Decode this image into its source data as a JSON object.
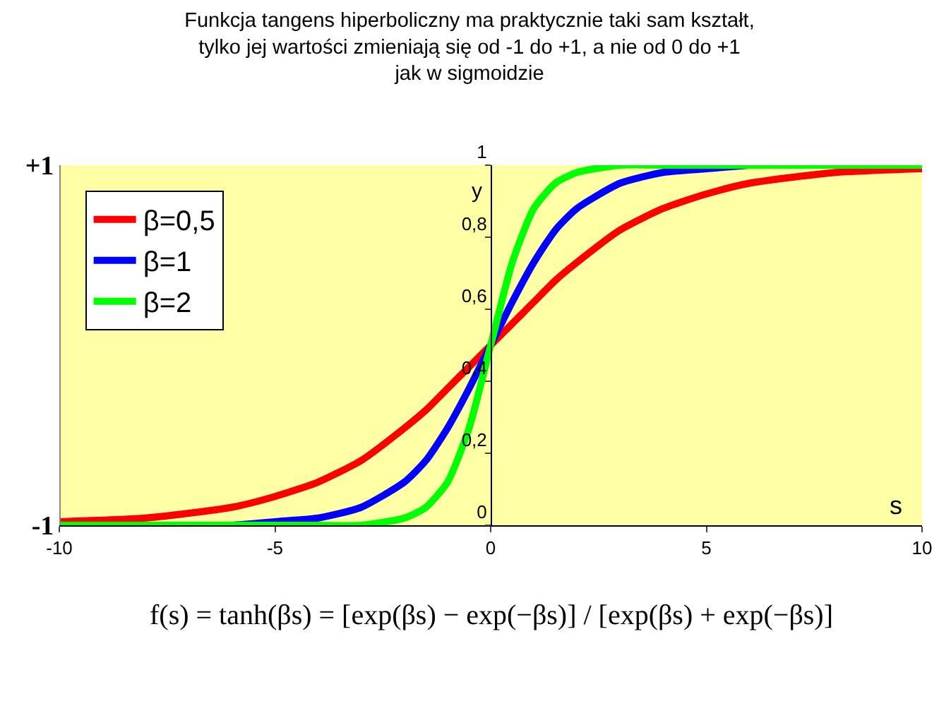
{
  "chart_data": {
    "type": "line",
    "title": "Funkcja tangens hiperboliczny ma praktycznie taki sam kształt,\ntylko jej wartości zmieniają się od -1 do +1, a nie od 0 do +1\njak w sigmoidzie",
    "xlabel": "s",
    "ylabel": "y",
    "x": [
      -10,
      -8,
      -6,
      -5,
      -4,
      -3,
      -2,
      -1.5,
      -1,
      -0.5,
      0,
      0.5,
      1,
      1.5,
      2,
      3,
      4,
      5,
      6,
      8,
      10
    ],
    "series": [
      {
        "name": "β=0,5",
        "color": "#ff0000",
        "values": [
          0.01,
          0.02,
          0.05,
          0.08,
          0.12,
          0.18,
          0.27,
          0.32,
          0.38,
          0.44,
          0.5,
          0.56,
          0.62,
          0.68,
          0.73,
          0.82,
          0.88,
          0.92,
          0.95,
          0.98,
          0.99
        ]
      },
      {
        "name": "β=1",
        "color": "#0000ff",
        "values": [
          0,
          0,
          0,
          0.01,
          0.02,
          0.05,
          0.12,
          0.18,
          0.27,
          0.38,
          0.5,
          0.62,
          0.73,
          0.82,
          0.88,
          0.95,
          0.98,
          0.99,
          1,
          null,
          null
        ]
      },
      {
        "name": "β=2",
        "color": "#00ff00",
        "values": [
          0,
          0,
          0,
          0,
          0,
          0,
          0.02,
          0.05,
          0.12,
          0.27,
          0.5,
          0.73,
          0.88,
          0.95,
          0.98,
          1,
          1,
          1,
          1,
          1,
          1
        ]
      }
    ],
    "xlim": [
      -10,
      10
    ],
    "xticks": [
      -10,
      -5,
      0,
      5,
      10
    ],
    "ylim": [
      0,
      1
    ],
    "yticks": [
      0,
      {
        "value": 0.2,
        "label": "0,2"
      },
      {
        "value": 0.4,
        "label": "0,4"
      },
      {
        "value": 0.6,
        "label": "0,6"
      },
      {
        "value": 0.8,
        "label": "0,8"
      },
      1
    ],
    "y2lim": [
      -1,
      1
    ],
    "y2ticks": [
      -1,
      {
        "value": 1,
        "label": "+1"
      }
    ],
    "annotations": [
      "f(s) = tanh(βs) = [exp(βs) − exp(−βs)] / [exp(βs) + exp(−βs)]"
    ],
    "grid": false,
    "legend": "top left",
    "marker": "none",
    "line_style": "solid"
  }
}
